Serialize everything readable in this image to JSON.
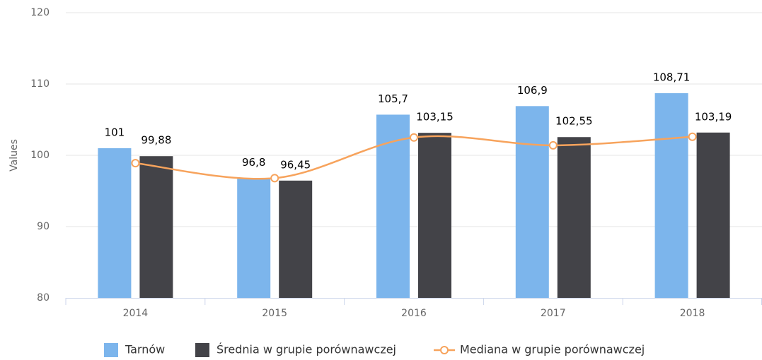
{
  "chart_data": {
    "type": "bar",
    "categories": [
      "2014",
      "2015",
      "2016",
      "2017",
      "2018"
    ],
    "y_label": "Values",
    "ylim": [
      80,
      120
    ],
    "yticks": [
      80,
      90,
      100,
      110,
      120
    ],
    "grid": true,
    "legend": "bottom",
    "series": [
      {
        "name": "Tarnów",
        "type": "bar",
        "color": "#7cb5ec",
        "values": [
          101,
          96.8,
          105.7,
          106.9,
          108.71
        ],
        "value_labels": [
          "101",
          "96,8",
          "105,7",
          "106,9",
          "108,71"
        ]
      },
      {
        "name": "Średnia w grupie porównawczej",
        "type": "bar",
        "color": "#434348",
        "values": [
          99.88,
          96.45,
          103.15,
          102.55,
          103.19
        ],
        "value_labels": [
          "99,88",
          "96,45",
          "103,15",
          "102,55",
          "103,19"
        ]
      },
      {
        "name": "Mediana w grupie porównawczej",
        "type": "line",
        "color": "#f7a35c",
        "values": [
          98.9,
          96.8,
          102.5,
          101.4,
          102.6
        ]
      }
    ]
  }
}
